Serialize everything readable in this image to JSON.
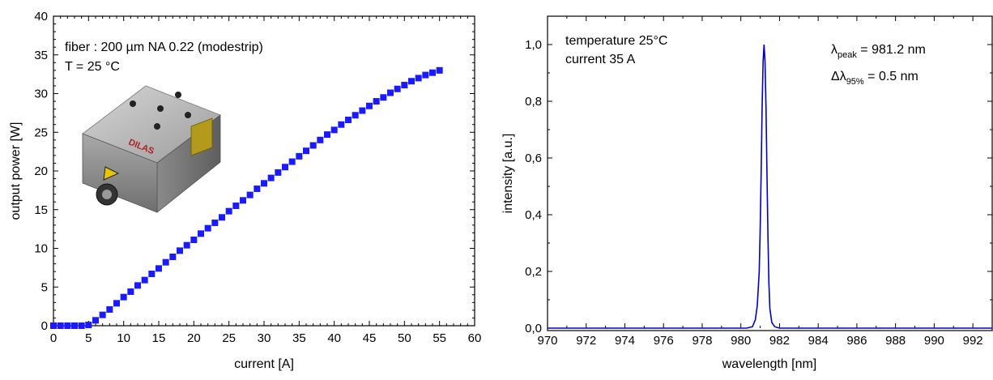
{
  "chart_data": [
    {
      "type": "scatter",
      "xlabel": "current [A]",
      "ylabel": "output power [W]",
      "xlim": [
        0,
        60
      ],
      "ylim": [
        0,
        40
      ],
      "xticks": [
        0,
        5,
        10,
        15,
        20,
        25,
        30,
        35,
        40,
        45,
        50,
        55,
        60
      ],
      "yticks": [
        0,
        5,
        10,
        15,
        20,
        25,
        30,
        35,
        40
      ],
      "xtick_labels": [
        "0",
        "5",
        "10",
        "15",
        "20",
        "25",
        "30",
        "35",
        "40",
        "45",
        "50",
        "55",
        "60"
      ],
      "ytick_labels": [
        "0",
        "5",
        "10",
        "15",
        "20",
        "25",
        "30",
        "35",
        "40"
      ],
      "grid": false,
      "annotations": [
        "fiber : 200 µm NA 0.22 (modestrip)",
        "T = 25 °C"
      ],
      "marker_color": "#1a1aff",
      "image": {
        "description": "DILAS laser module photo",
        "logo_text": "DILAS"
      },
      "series": [
        {
          "x": [
            0,
            1,
            2,
            3,
            4,
            5,
            6,
            7,
            8,
            9,
            10,
            11,
            12,
            13,
            14,
            15,
            16,
            17,
            18,
            19,
            20,
            21,
            22,
            23,
            24,
            25,
            26,
            27,
            28,
            29,
            30,
            31,
            32,
            33,
            34,
            35,
            36,
            37,
            38,
            39,
            40,
            41,
            42,
            43,
            44,
            45,
            46,
            47,
            48,
            49,
            50,
            51,
            52,
            53,
            54,
            55
          ],
          "y": [
            0,
            0,
            0,
            0,
            0,
            0.1,
            0.7,
            1.4,
            2.1,
            2.9,
            3.7,
            4.4,
            5.2,
            5.9,
            6.7,
            7.4,
            8.2,
            8.9,
            9.7,
            10.4,
            11.1,
            11.9,
            12.6,
            13.3,
            14.0,
            14.8,
            15.5,
            16.2,
            16.9,
            17.7,
            18.4,
            19.1,
            19.8,
            20.5,
            21.2,
            21.9,
            22.6,
            23.3,
            24.0,
            24.7,
            25.3,
            26.0,
            26.6,
            27.2,
            27.8,
            28.4,
            29.0,
            29.5,
            30.1,
            30.6,
            31.1,
            31.6,
            32.0,
            32.4,
            32.7,
            33.0
          ]
        }
      ]
    },
    {
      "type": "line",
      "xlabel": "wavelength [nm]",
      "ylabel": "intensity [a.u.]",
      "xlim": [
        970,
        993
      ],
      "ylim": [
        0,
        1.1
      ],
      "xticks": [
        970,
        972,
        974,
        976,
        978,
        980,
        982,
        984,
        986,
        988,
        990,
        992
      ],
      "yticks": [
        0,
        0.2,
        0.4,
        0.6,
        0.8,
        1.0
      ],
      "xtick_labels": [
        "970",
        "972",
        "974",
        "976",
        "978",
        "980",
        "982",
        "984",
        "986",
        "988",
        "990",
        "992"
      ],
      "ytick_labels": [
        "0,0",
        "0,2",
        "0,4",
        "0,6",
        "0,8",
        "1,0"
      ],
      "grid": false,
      "line_color": "#0000cc",
      "annotations": {
        "left": [
          "temperature 25°C",
          "current 35 A"
        ],
        "peak": {
          "symbol": "λ",
          "sub": "peak",
          "value": " = 981.2 nm"
        },
        "width": {
          "symbol": "Δλ",
          "sub": "95%",
          "value": " = 0.5 nm"
        }
      },
      "series": [
        {
          "x": [
            970,
            980.3,
            980.6,
            980.75,
            980.85,
            980.95,
            981.0,
            981.05,
            981.1,
            981.15,
            981.2,
            981.25,
            981.3,
            981.35,
            981.4,
            981.45,
            981.5,
            981.6,
            981.75,
            982.0,
            993
          ],
          "y": [
            0,
            0.0,
            0.005,
            0.03,
            0.08,
            0.2,
            0.35,
            0.55,
            0.78,
            0.94,
            1.0,
            0.94,
            0.78,
            0.55,
            0.33,
            0.16,
            0.07,
            0.02,
            0.005,
            0.0,
            0.0
          ]
        }
      ]
    }
  ]
}
